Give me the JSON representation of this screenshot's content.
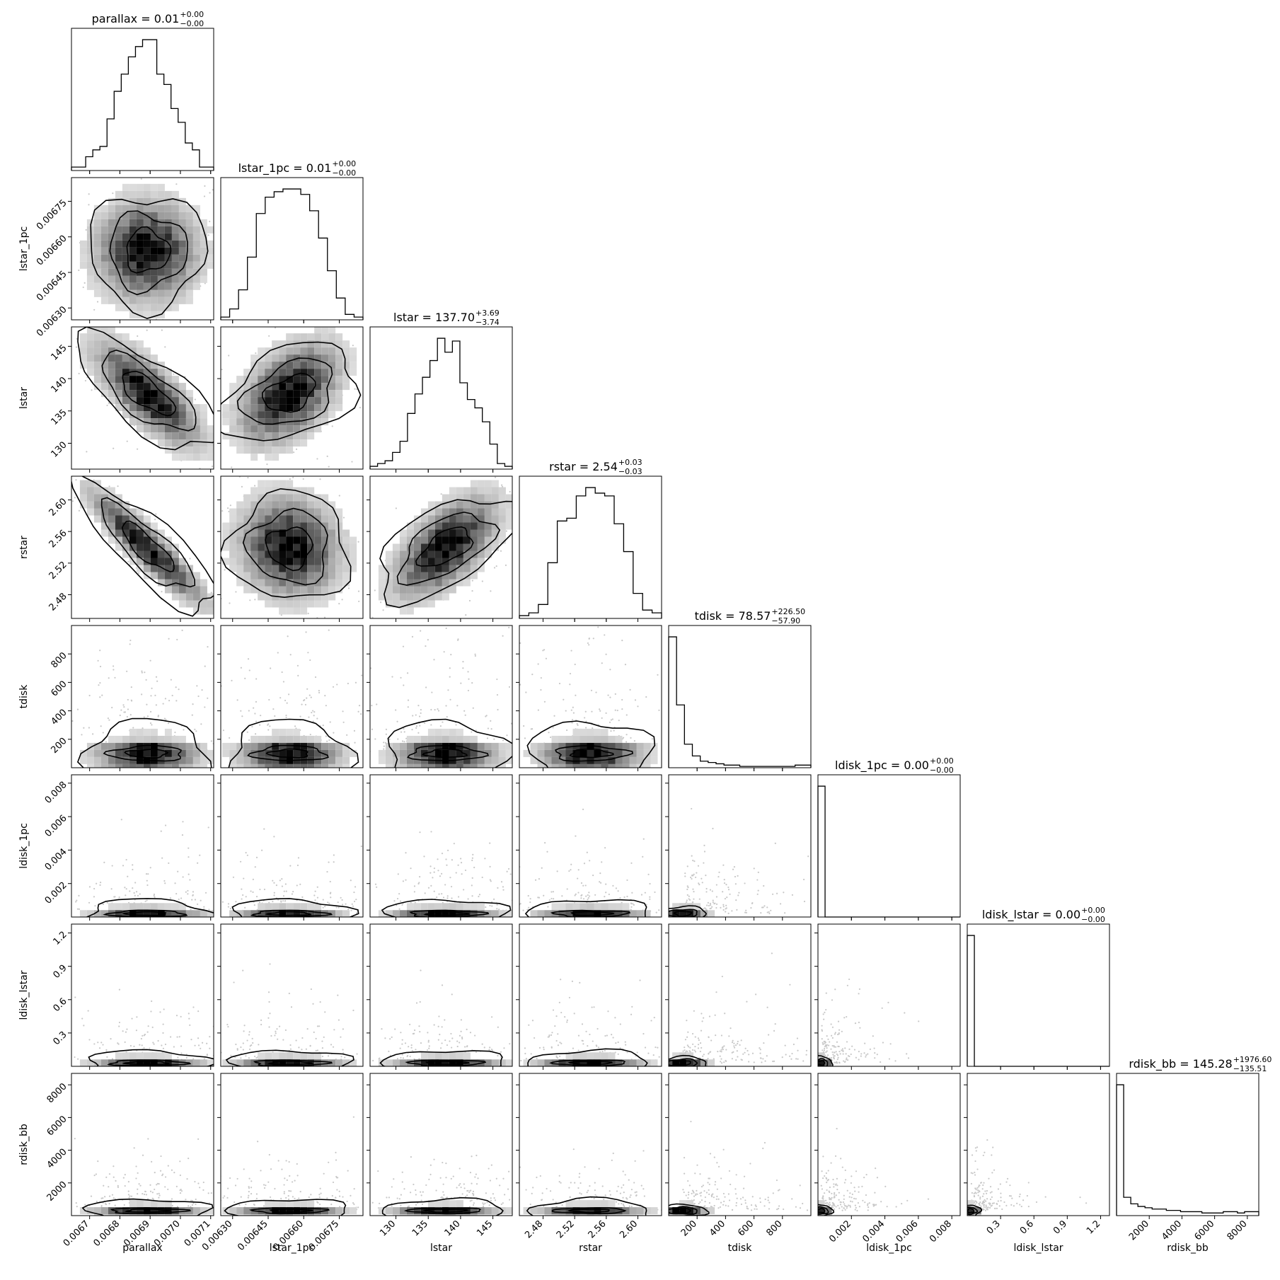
{
  "chart_data": {
    "type": "corner",
    "parameters": [
      {
        "name": "parallax",
        "label": "parallax",
        "range": [
          0.00664,
          0.00711
        ],
        "ticks": [
          0.0067,
          0.0068,
          0.0069,
          0.007,
          0.0071
        ],
        "tick_labels": [
          "0.0067",
          "0.0068",
          "0.0069",
          "0.0070",
          "0.0071"
        ],
        "mean": 0.00689,
        "sd": 8e-05,
        "title": {
          "text": "parallax = 0.01",
          "plus": "+0.00",
          "minus": "−0.00"
        },
        "hist": [
          1,
          1,
          4,
          6,
          7,
          15,
          23,
          28,
          33,
          36,
          38,
          38,
          28,
          25,
          18,
          14,
          8,
          6,
          1,
          1
        ]
      },
      {
        "name": "lstar_1pc",
        "label": "lstar_1pc",
        "range": [
          0.00625,
          0.00685
        ],
        "ticks": [
          0.0063,
          0.00645,
          0.0066,
          0.00675
        ],
        "tick_labels": [
          "0.00630",
          "0.00645",
          "0.00660",
          "0.00675"
        ],
        "mean": 0.00654,
        "sd": 0.0001,
        "title": {
          "text": "lstar_1pc = 0.01",
          "plus": "+0.00",
          "minus": "−0.00"
        },
        "hist": [
          1,
          4,
          11,
          23,
          39,
          45,
          47,
          48,
          48,
          46,
          40,
          30,
          18,
          8,
          2,
          1
        ]
      },
      {
        "name": "lstar",
        "label": "lstar",
        "range": [
          126,
          148
        ],
        "ticks": [
          130,
          135,
          140,
          145
        ],
        "tick_labels": [
          "130",
          "135",
          "140",
          "145"
        ],
        "mean": 137.7,
        "sd": 3.7,
        "title": {
          "text": "lstar = 137.70",
          "plus": "+3.69",
          "minus": "−3.74"
        },
        "hist": [
          1,
          2,
          3,
          6,
          10,
          20,
          27,
          33,
          39,
          47,
          42,
          46,
          31,
          25,
          22,
          17,
          9,
          2,
          1
        ]
      },
      {
        "name": "rstar",
        "label": "rstar",
        "range": [
          2.45,
          2.63
        ],
        "ticks": [
          2.48,
          2.52,
          2.56,
          2.6
        ],
        "tick_labels": [
          "2.48",
          "2.52",
          "2.56",
          "2.60"
        ],
        "mean": 2.54,
        "sd": 0.03,
        "title": {
          "text": "rstar = 2.54",
          "plus": "+0.03",
          "minus": "−0.03"
        },
        "hist": [
          1,
          2,
          5,
          20,
          35,
          36,
          44,
          47,
          45,
          44,
          34,
          24,
          9,
          3,
          2
        ]
      },
      {
        "name": "tdisk",
        "label": "tdisk",
        "range": [
          0,
          1000
        ],
        "ticks": [
          200,
          400,
          600,
          800
        ],
        "tick_labels": [
          "200",
          "400",
          "600",
          "800"
        ],
        "mean": 100,
        "sd": 80,
        "title": {
          "text": "tdisk = 78.57",
          "plus": "+226.50",
          "minus": "−57.90"
        },
        "hist": [
          100,
          48,
          18,
          9,
          5,
          4,
          3,
          2,
          2,
          1,
          1,
          1,
          1,
          1,
          1,
          1,
          2,
          2
        ]
      },
      {
        "name": "ldisk_1pc",
        "label": "ldisk_1pc",
        "range": [
          0,
          0.0085
        ],
        "ticks": [
          0.002,
          0.004,
          0.006,
          0.008
        ],
        "tick_labels": [
          "0.002",
          "0.004",
          "0.006",
          "0.008"
        ],
        "mean": 0.0002,
        "sd": 0.0003,
        "title": {
          "text": "ldisk_1pc = 0.00",
          "plus": "+0.00",
          "minus": "−0.00"
        },
        "hist": [
          100,
          0,
          0,
          0,
          0,
          0,
          0,
          0,
          0,
          0,
          0,
          0,
          0,
          0,
          0,
          0,
          0,
          0,
          0,
          0
        ]
      },
      {
        "name": "ldisk_lstar",
        "label": "ldisk_lstar",
        "range": [
          0,
          1.28
        ],
        "ticks": [
          0.3,
          0.6,
          0.9,
          1.2
        ],
        "tick_labels": [
          "0.3",
          "0.6",
          "0.9",
          "1.2"
        ],
        "mean": 0.03,
        "sd": 0.04,
        "title": {
          "text": "ldisk_lstar = 0.00",
          "plus": "+0.00",
          "minus": "−0.00"
        },
        "hist": [
          100,
          0,
          0,
          0,
          0,
          0,
          0,
          0,
          0,
          0,
          0,
          0,
          0,
          0,
          0,
          0,
          0,
          0,
          0,
          0
        ]
      },
      {
        "name": "rdisk_bb",
        "label": "rdisk_bb",
        "range": [
          0,
          8700
        ],
        "ticks": [
          2000,
          4000,
          6000,
          8000
        ],
        "tick_labels": [
          "2000",
          "4000",
          "6000",
          "8000"
        ],
        "mean": 300,
        "sd": 250,
        "title": {
          "text": "rdisk_bb = 145.28",
          "plus": "+1976.60",
          "minus": "−135.51"
        },
        "hist": [
          100,
          14,
          9,
          7,
          6,
          5,
          5,
          4,
          4,
          3,
          3,
          3,
          2,
          2,
          2,
          3,
          3,
          2,
          3,
          3
        ]
      }
    ],
    "correlations": {
      "1,0": 0.0,
      "2,0": -0.75,
      "2,1": 0.45,
      "3,0": -0.92,
      "3,1": -0.1,
      "3,2": 0.6
    },
    "grid": false,
    "colors": {
      "line": "#000000",
      "scatter": "#c8c8c8",
      "density_dark": "#000000",
      "density_light": "#f0f0f0"
    }
  }
}
